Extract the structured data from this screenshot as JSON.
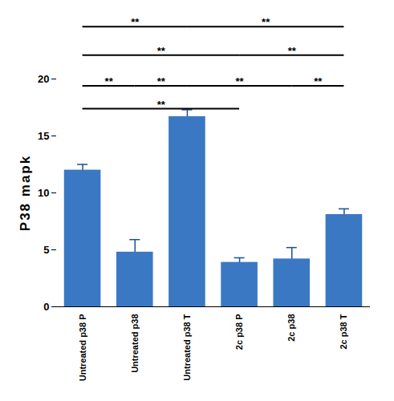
{
  "chart_data": {
    "type": "bar",
    "y_label": "P38 mapk",
    "categories": [
      "Untreated p38 P",
      "Untreated p38",
      "Untreated p38 T",
      "2c p38 P",
      "2c p38",
      "2c p38 T"
    ],
    "values": [
      12.0,
      4.8,
      16.7,
      3.9,
      4.2,
      8.1
    ],
    "error": [
      0.5,
      1.1,
      0.6,
      0.4,
      1.0,
      0.5
    ],
    "color": "#3a78c3",
    "ylim": [
      0,
      20
    ],
    "yticks": [
      0,
      5,
      10,
      15,
      20
    ],
    "grid": false,
    "brackets": [
      {
        "from": 0,
        "to": 2,
        "y": 24.6,
        "label": "**"
      },
      {
        "from": 2,
        "to": 5,
        "y": 24.6,
        "label": "**"
      },
      {
        "from": 0,
        "to": 3,
        "y": 22.1,
        "label": "**"
      },
      {
        "from": 3,
        "to": 5,
        "y": 22.1,
        "label": "**"
      },
      {
        "from": 0,
        "to": 1,
        "y": 19.4,
        "label": "**"
      },
      {
        "from": 1,
        "to": 2,
        "y": 19.4,
        "label": "**"
      },
      {
        "from": 2,
        "to": 4,
        "y": 19.4,
        "label": "**"
      },
      {
        "from": 4,
        "to": 5,
        "y": 19.4,
        "label": "**"
      },
      {
        "from": 0,
        "to": 3,
        "y": 17.4,
        "label": "**"
      }
    ]
  }
}
